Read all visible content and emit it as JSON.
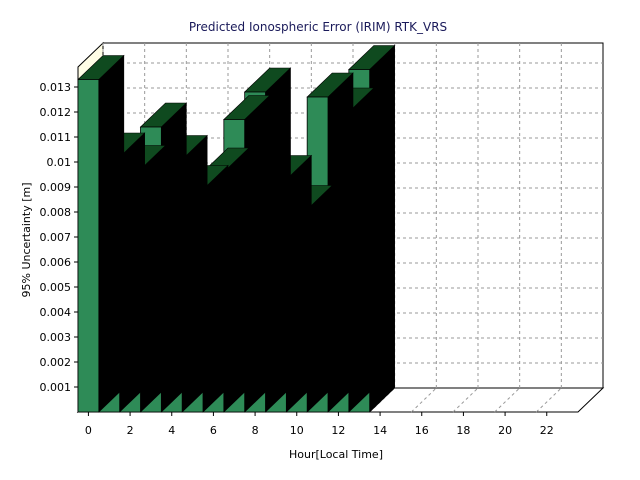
{
  "chart_data": {
    "type": "bar",
    "title": "Predicted Ionospheric Error (IRIM) RTK_VRS",
    "xlabel": "Hour[Local Time]",
    "ylabel": "95% Uncertainty [m]",
    "x_ticks": [
      "0",
      "2",
      "4",
      "6",
      "8",
      "10",
      "12",
      "14",
      "16",
      "18",
      "20",
      "22"
    ],
    "y_ticks": [
      "0.001",
      "0.002",
      "0.003",
      "0.004",
      "0.005",
      "0.006",
      "0.007",
      "0.008",
      "0.009",
      "0.01",
      "0.011",
      "0.012",
      "0.013"
    ],
    "xlim": [
      0,
      24
    ],
    "ylim": [
      0,
      0.0138
    ],
    "grid": true,
    "style": "3d",
    "bar_color": "#2e8b57",
    "bar_top_color": "#0f4a1f",
    "bar_side_color": "#000000",
    "wall_color": "#fffde6",
    "hours": [
      0,
      1,
      2,
      3,
      4,
      5,
      6,
      7,
      8,
      9,
      10,
      11,
      12,
      13
    ],
    "values": [
      0.0133,
      0.0102,
      0.0097,
      0.0114,
      0.0101,
      0.0089,
      0.0096,
      0.0117,
      0.0128,
      0.0093,
      0.0081,
      0.0126,
      0.012,
      0.0137
    ]
  }
}
